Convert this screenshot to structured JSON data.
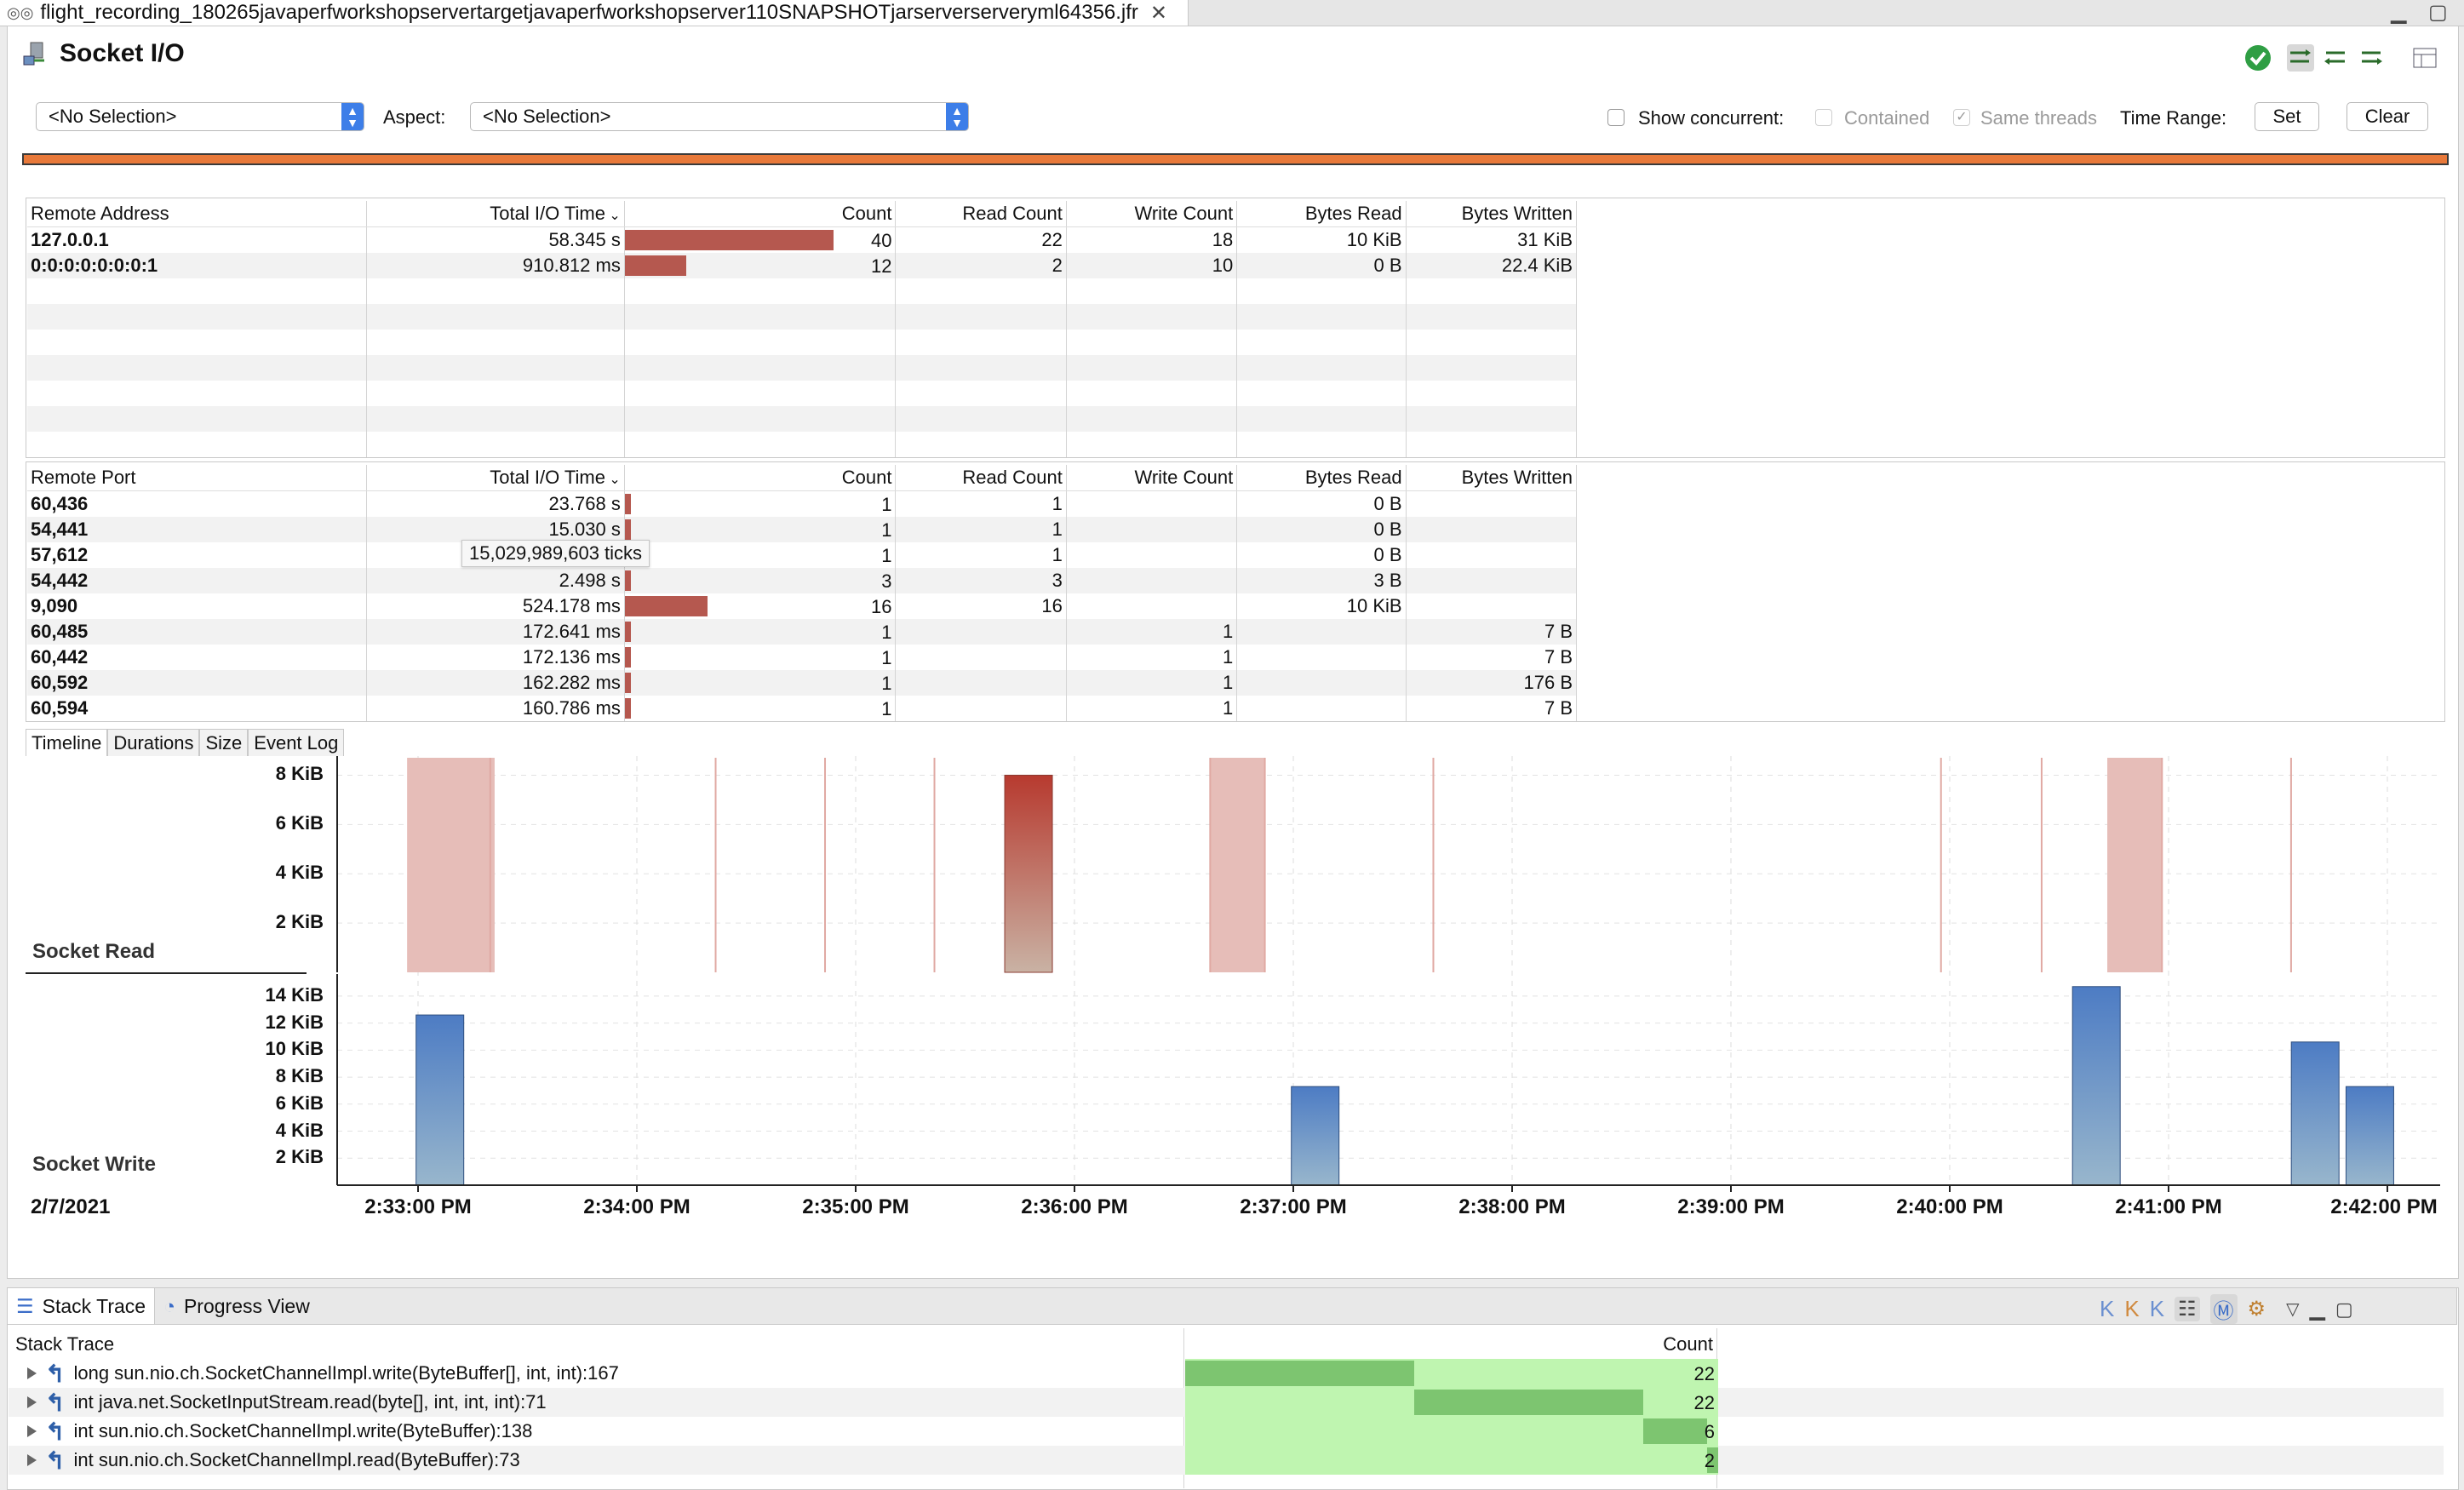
{
  "window": {
    "tab_title": "flight_recording_180265javaperfworkshopservertargetjavaperfworkshopserver110SNAPSHOTjarserverserveryml64356.jfr"
  },
  "page": {
    "title": "Socket I/O"
  },
  "filters": {
    "selection_value": "<No Selection>",
    "aspect_label": "Aspect:",
    "aspect_value": "<No Selection>",
    "show_concurrent": "Show concurrent:",
    "contained": "Contained",
    "same_threads": "Same threads",
    "time_range": "Time Range:",
    "set": "Set",
    "clear": "Clear"
  },
  "address_table": {
    "headers": [
      "Remote Address",
      "Total I/O Time",
      "Count",
      "Read Count",
      "Write Count",
      "Bytes Read",
      "Bytes Written"
    ],
    "rows": [
      {
        "key": "127.0.0.1",
        "time": "58.345 s",
        "bar": 0.98,
        "count": "40",
        "read": "22",
        "write": "18",
        "bytes_read": "10 KiB",
        "bytes_written": "31 KiB"
      },
      {
        "key": "0:0:0:0:0:0:0:1",
        "time": "910.812 ms",
        "bar": 0.29,
        "count": "12",
        "read": "2",
        "write": "10",
        "bytes_read": "0 B",
        "bytes_written": "22.4 KiB"
      }
    ]
  },
  "port_table": {
    "headers": [
      "Remote Port",
      "Total I/O Time",
      "Count",
      "Read Count",
      "Write Count",
      "Bytes Read",
      "Bytes Written"
    ],
    "rows": [
      {
        "key": "60,436",
        "time": "23.768 s",
        "bar": 0.03,
        "count": "1",
        "read": "1",
        "write": "",
        "bytes_read": "0 B",
        "bytes_written": ""
      },
      {
        "key": "54,441",
        "time": "15.030 s",
        "bar": 0.03,
        "count": "1",
        "read": "1",
        "write": "",
        "bytes_read": "0 B",
        "bytes_written": ""
      },
      {
        "key": "57,612",
        "time": "",
        "bar": 0.03,
        "count": "1",
        "read": "1",
        "write": "",
        "bytes_read": "0 B",
        "bytes_written": ""
      },
      {
        "key": "54,442",
        "time": "2.498 s",
        "bar": 0.03,
        "count": "3",
        "read": "3",
        "write": "",
        "bytes_read": "3 B",
        "bytes_written": ""
      },
      {
        "key": "9,090",
        "time": "524.178 ms",
        "bar": 0.39,
        "count": "16",
        "read": "16",
        "write": "",
        "bytes_read": "10 KiB",
        "bytes_written": ""
      },
      {
        "key": "60,485",
        "time": "172.641 ms",
        "bar": 0.03,
        "count": "1",
        "read": "",
        "write": "1",
        "bytes_read": "",
        "bytes_written": "7 B"
      },
      {
        "key": "60,442",
        "time": "172.136 ms",
        "bar": 0.03,
        "count": "1",
        "read": "",
        "write": "1",
        "bytes_read": "",
        "bytes_written": "7 B"
      },
      {
        "key": "60,592",
        "time": "162.282 ms",
        "bar": 0.03,
        "count": "1",
        "read": "",
        "write": "1",
        "bytes_read": "",
        "bytes_written": "176 B"
      },
      {
        "key": "60,594",
        "time": "160.786 ms",
        "bar": 0.03,
        "count": "1",
        "read": "",
        "write": "1",
        "bytes_read": "",
        "bytes_written": "7 B"
      }
    ],
    "tooltip": "15,029,989,603 ticks"
  },
  "chart_tabs": [
    "Timeline",
    "Durations",
    "Size",
    "Event Log"
  ],
  "chart_data": {
    "type": "bar",
    "date": "2/7/2021",
    "x_ticks": [
      "2:33:00 PM",
      "2:34:00 PM",
      "2:35:00 PM",
      "2:36:00 PM",
      "2:37:00 PM",
      "2:38:00 PM",
      "2:39:00 PM",
      "2:40:00 PM",
      "2:41:00 PM",
      "2:42:00 PM"
    ],
    "socket_read": {
      "label": "Socket Read",
      "y_ticks": [
        "8 KiB",
        "6 KiB",
        "4 KiB",
        "2 KiB"
      ],
      "ylim_kib": [
        0,
        8.5
      ],
      "bars": [
        {
          "t_min": 2.79,
          "kib": 8.0
        }
      ],
      "spans": [
        [
          -0.05,
          0.35
        ],
        [
          3.62,
          3.87
        ],
        [
          7.72,
          7.97
        ]
      ],
      "lines": [
        0.33,
        1.36,
        1.86,
        2.36,
        3.62,
        3.87,
        4.64,
        6.96,
        7.42,
        7.97,
        8.56
      ]
    },
    "socket_write": {
      "label": "Socket Write",
      "y_ticks": [
        "14 KiB",
        "12 KiB",
        "10 KiB",
        "8 KiB",
        "6 KiB",
        "4 KiB",
        "2 KiB"
      ],
      "ylim_kib": [
        0,
        15
      ],
      "bars": [
        {
          "t_min": 0.1,
          "kib": 12.6
        },
        {
          "t_min": 4.1,
          "kib": 7.3
        },
        {
          "t_min": 7.67,
          "kib": 14.7
        },
        {
          "t_min": 8.67,
          "kib": 10.6
        },
        {
          "t_min": 8.92,
          "kib": 7.3
        }
      ]
    }
  },
  "bottom_panel": {
    "tabs": [
      "Stack Trace",
      "Progress View"
    ],
    "headers": [
      "Stack Trace",
      "Count"
    ],
    "rows": [
      {
        "frame": "long sun.nio.ch.SocketChannelImpl.write(ByteBuffer[], int, int):167",
        "count": "22",
        "bar_start": 0.0,
        "bar_end": 0.43
      },
      {
        "frame": "int java.net.SocketInputStream.read(byte[], int, int, int):71",
        "count": "22",
        "bar_start": 0.43,
        "bar_end": 0.86
      },
      {
        "frame": "int sun.nio.ch.SocketChannelImpl.write(ByteBuffer):138",
        "count": "6",
        "bar_start": 0.86,
        "bar_end": 0.98
      },
      {
        "frame": "int sun.nio.ch.SocketChannelImpl.read(ByteBuffer):73",
        "count": "2",
        "bar_start": 0.98,
        "bar_end": 1.0
      }
    ]
  },
  "colors": {
    "range_bar": "#e8793a",
    "read_fill": "#b5584f",
    "read_span": "#e6bdb8",
    "write_fill": "#5e88c4",
    "stack_bar_dark": "#7dc570",
    "stack_bar_light": "#bff5b0"
  }
}
